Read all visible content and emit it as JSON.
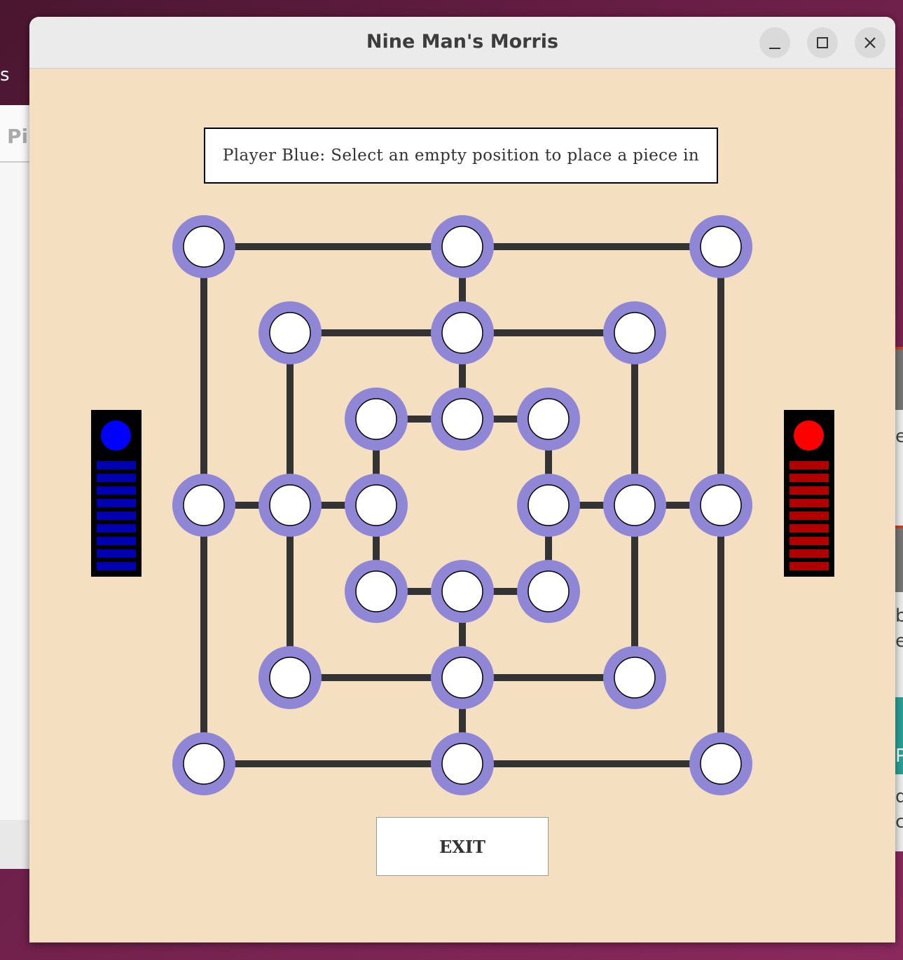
{
  "background": {
    "left_window_tab_text": "Pi",
    "left_edge_text": "s",
    "right_edge_texts": [
      "e",
      "b",
      "e",
      "P",
      "d",
      "c"
    ]
  },
  "window": {
    "title": "Nine Man's Morris",
    "controls": {
      "minimize_icon": "minimize-icon",
      "maximize_icon": "maximize-icon",
      "close_icon": "close-icon"
    }
  },
  "status": {
    "message": "Player Blue: Select an empty position to place a piece in"
  },
  "board": {
    "line_color": "#333333",
    "ring_color": "#8f86d6",
    "empty_color": "#ffffff",
    "positions": [
      "a7",
      "d7",
      "g7",
      "b6",
      "d6",
      "f6",
      "c5",
      "d5",
      "e5",
      "a4",
      "b4",
      "c4",
      "e4",
      "f4",
      "g4",
      "c3",
      "d3",
      "e3",
      "b2",
      "d2",
      "f2",
      "a1",
      "d1",
      "g1"
    ],
    "occupied": []
  },
  "players": {
    "blue": {
      "name": "Blue",
      "color": "#0000ff",
      "bar_color": "#0000b0",
      "pieces_remaining": 9
    },
    "red": {
      "name": "Red",
      "color": "#ff0000",
      "bar_color": "#b00000",
      "pieces_remaining": 9
    }
  },
  "exit_button": {
    "label": "EXIT"
  }
}
